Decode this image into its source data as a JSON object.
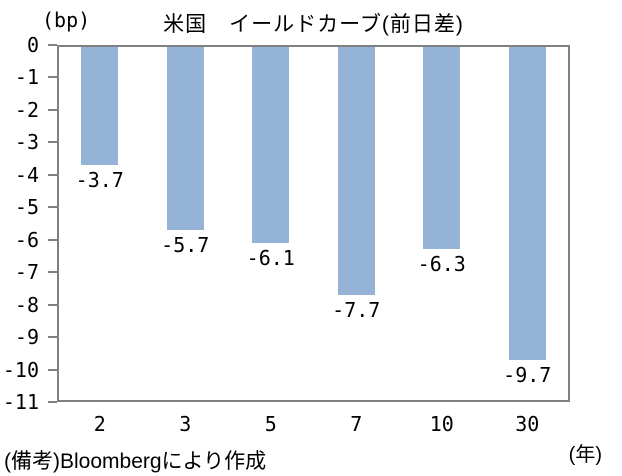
{
  "chart_data": {
    "type": "bar",
    "title": "米国　イールドカーブ(前日差)",
    "y_unit_label": "(bp)",
    "x_unit_label": "(年)",
    "categories": [
      "2",
      "3",
      "5",
      "7",
      "10",
      "30"
    ],
    "values": [
      -3.7,
      -5.7,
      -6.1,
      -7.7,
      -6.3,
      -9.7
    ],
    "value_labels": [
      "-3.7",
      "-5.7",
      "-6.1",
      "-7.7",
      "-6.3",
      "-9.7"
    ],
    "ylim": [
      -11,
      0
    ],
    "y_ticks": [
      "0",
      "-1",
      "-2",
      "-3",
      "-4",
      "-5",
      "-6",
      "-7",
      "-8",
      "-9",
      "-10",
      "-11"
    ],
    "grid": false,
    "legend_position": "none",
    "bar_color": "#95B3D7",
    "axis_color": "#808080",
    "text_color": "#000000"
  },
  "footer": {
    "note": "(備考)Bloombergにより作成"
  }
}
